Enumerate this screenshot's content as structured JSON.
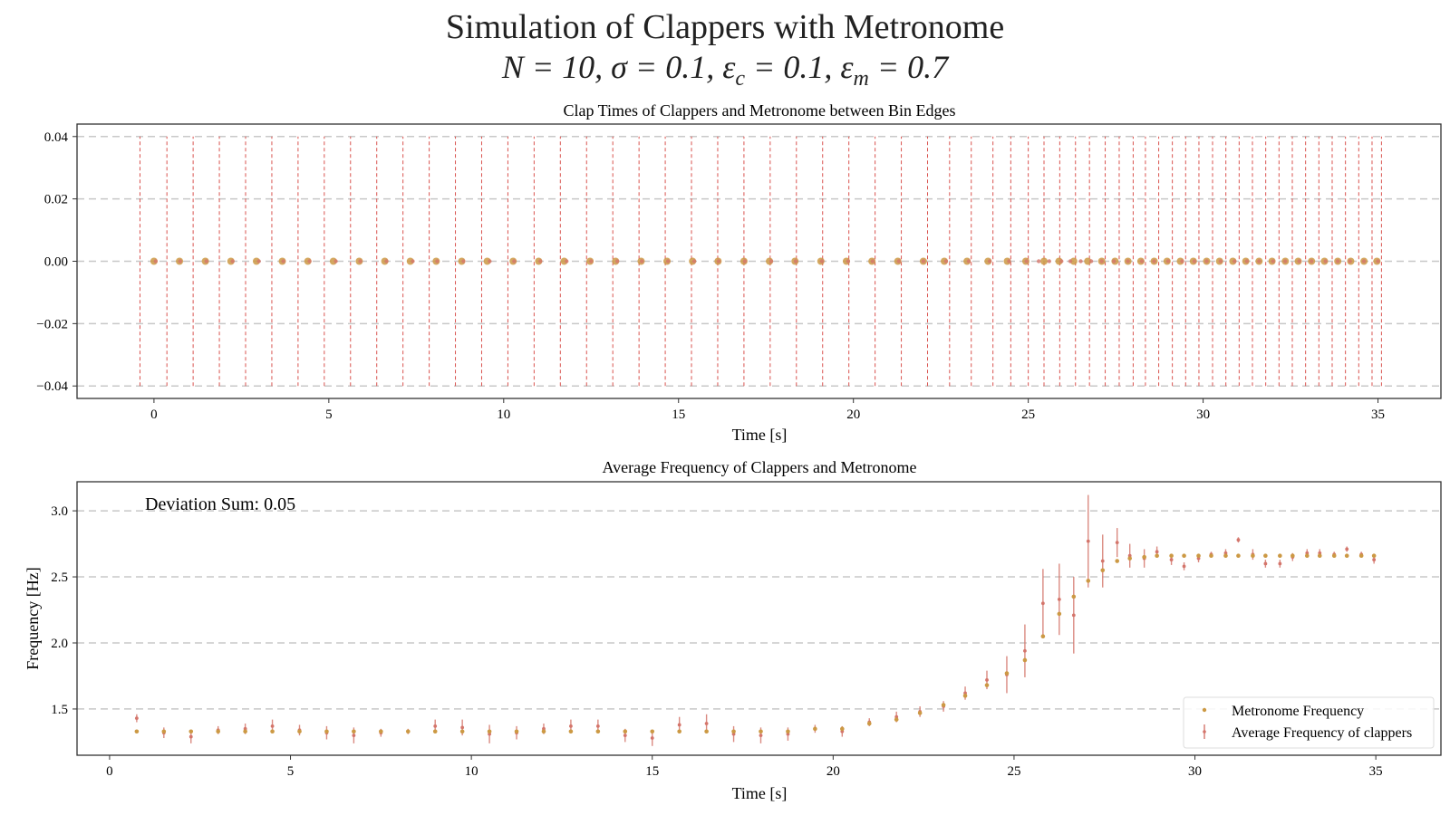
{
  "figure": {
    "title_line1": "Simulation of Clappers with Metronome",
    "params": {
      "N": "10",
      "sigma": "0.1",
      "eps_c": "0.1",
      "eps_m": "0.7"
    }
  },
  "colors": {
    "bin_edge": "#d9534f",
    "metronome": "#cc9944",
    "clapper": "#d4756b",
    "grid": "#c8c8c8",
    "axes": "#333333"
  },
  "chart_data": [
    {
      "type": "scatter",
      "title": "Clap Times of Clappers and Metronome between Bin Edges",
      "xlabel": "Time [s]",
      "ylabel": "",
      "xlim": [
        -2.2,
        36.8
      ],
      "ylim": [
        -0.044,
        0.044
      ],
      "xticks": [
        0,
        5,
        10,
        15,
        20,
        25,
        30,
        35
      ],
      "yticks": [
        0.04,
        0.02,
        0.0,
        -0.02,
        -0.04
      ],
      "ytick_labels": [
        "0.04",
        "0.02",
        "0.00",
        "−0.02",
        "−0.04"
      ],
      "grid": "y-dashed",
      "bin_edges_range": [
        -0.04,
        0.04
      ],
      "bin_edges": [
        -0.4,
        0.37,
        1.12,
        1.87,
        2.62,
        3.37,
        4.12,
        4.87,
        5.62,
        6.37,
        7.12,
        7.87,
        8.62,
        9.37,
        10.12,
        10.87,
        11.62,
        12.37,
        13.12,
        13.87,
        14.62,
        15.37,
        16.12,
        16.87,
        17.62,
        18.37,
        19.12,
        19.87,
        20.62,
        21.37,
        22.12,
        22.75,
        23.37,
        23.99,
        24.5,
        25.0,
        25.45,
        25.9,
        26.35,
        26.75,
        27.2,
        27.6,
        28.0,
        28.35,
        28.73,
        29.12,
        29.5,
        29.88,
        30.27,
        30.65,
        31.03,
        31.41,
        31.79,
        32.17,
        32.55,
        32.93,
        33.31,
        33.69,
        34.07,
        34.45,
        34.83,
        35.1
      ],
      "metronome_clap_times": [
        0.0,
        0.73,
        1.47,
        2.2,
        2.93,
        3.67,
        4.4,
        5.13,
        5.87,
        6.6,
        7.33,
        8.07,
        8.8,
        9.53,
        10.27,
        11.0,
        11.73,
        12.47,
        13.2,
        13.93,
        14.67,
        15.4,
        16.13,
        16.87,
        17.6,
        18.33,
        19.07,
        19.8,
        20.53,
        21.27,
        22.0,
        22.6,
        23.25,
        23.85,
        24.4,
        24.93,
        25.45,
        25.88,
        26.3,
        26.7,
        27.1,
        27.48,
        27.85,
        28.22,
        28.6,
        28.97,
        29.35,
        29.72,
        30.1,
        30.47,
        30.85,
        31.22,
        31.6,
        31.97,
        32.35,
        32.72,
        33.1,
        33.47,
        33.85,
        34.22,
        34.6,
        34.97
      ],
      "clapper_clap_times": [
        0.05,
        0.75,
        1.5,
        2.25,
        3.0,
        3.7,
        4.45,
        5.2,
        5.9,
        6.65,
        7.4,
        8.1,
        8.85,
        9.6,
        10.3,
        11.05,
        11.8,
        12.5,
        13.25,
        13.95,
        14.7,
        15.45,
        16.15,
        16.9,
        17.65,
        18.35,
        19.1,
        19.85,
        20.55,
        21.3,
        22.0,
        22.65,
        23.3,
        23.9,
        24.45,
        24.95,
        25.3,
        25.6,
        25.95,
        26.2,
        26.5,
        26.8,
        27.1,
        27.45,
        27.85,
        28.25,
        28.6,
        29.0,
        29.4,
        29.75,
        30.1,
        30.5,
        30.9,
        31.25,
        31.6,
        32.0,
        32.35,
        32.75,
        33.1,
        33.5,
        33.85,
        34.2,
        34.6,
        35.0
      ]
    },
    {
      "type": "scatter",
      "title": "Average Frequency of Clappers and Metronome",
      "xlabel": "Time [s]",
      "ylabel": "Frequency [Hz]",
      "xlim": [
        -0.9,
        36.8
      ],
      "ylim": [
        1.15,
        3.22
      ],
      "xticks": [
        0,
        5,
        10,
        15,
        20,
        25,
        30,
        35
      ],
      "yticks": [
        1.5,
        2.0,
        2.5,
        3.0
      ],
      "ytick_labels": [
        "1.5",
        "2.0",
        "2.5",
        "3.0"
      ],
      "grid": "y-dashed",
      "legend_position": "lower-right",
      "annotation": "Deviation Sum: 0.05",
      "series": [
        {
          "name": "Metronome Frequency",
          "kind": "points",
          "x": [
            0.75,
            1.5,
            2.25,
            3.0,
            3.75,
            4.5,
            5.25,
            6.0,
            6.75,
            7.5,
            8.25,
            9.0,
            9.75,
            10.5,
            11.25,
            12.0,
            12.75,
            13.5,
            14.25,
            15.0,
            15.75,
            16.5,
            17.25,
            18.0,
            18.75,
            19.5,
            20.25,
            21.0,
            21.75,
            22.4,
            23.05,
            23.65,
            24.25,
            24.8,
            25.3,
            25.8,
            26.25,
            26.65,
            27.05,
            27.45,
            27.85,
            28.2,
            28.6,
            28.95,
            29.35,
            29.7,
            30.1,
            30.45,
            30.85,
            31.2,
            31.6,
            31.95,
            32.35,
            32.7,
            33.1,
            33.45,
            33.85,
            34.2,
            34.6,
            34.95
          ],
          "y": [
            1.33,
            1.33,
            1.33,
            1.33,
            1.33,
            1.33,
            1.33,
            1.33,
            1.33,
            1.33,
            1.33,
            1.33,
            1.33,
            1.33,
            1.33,
            1.33,
            1.33,
            1.33,
            1.33,
            1.33,
            1.33,
            1.33,
            1.33,
            1.33,
            1.33,
            1.35,
            1.35,
            1.39,
            1.42,
            1.47,
            1.53,
            1.6,
            1.68,
            1.77,
            1.87,
            2.05,
            2.22,
            2.35,
            2.47,
            2.55,
            2.62,
            2.64,
            2.65,
            2.66,
            2.66,
            2.66,
            2.66,
            2.66,
            2.66,
            2.66,
            2.66,
            2.66,
            2.66,
            2.66,
            2.66,
            2.66,
            2.66,
            2.66,
            2.66,
            2.66
          ]
        },
        {
          "name": "Average Frequency of clappers",
          "kind": "errorbar",
          "x": [
            0.75,
            1.5,
            2.25,
            3.0,
            3.75,
            4.5,
            5.25,
            6.0,
            6.75,
            7.5,
            8.25,
            9.0,
            9.75,
            10.5,
            11.25,
            12.0,
            12.75,
            13.5,
            14.25,
            15.0,
            15.75,
            16.5,
            17.25,
            18.0,
            18.75,
            19.5,
            20.25,
            21.0,
            21.75,
            22.4,
            23.05,
            23.65,
            24.25,
            24.8,
            25.3,
            25.8,
            26.25,
            26.65,
            27.05,
            27.45,
            27.85,
            28.2,
            28.6,
            28.95,
            29.35,
            29.7,
            30.1,
            30.45,
            30.85,
            31.2,
            31.6,
            31.95,
            32.35,
            32.7,
            33.1,
            33.45,
            33.85,
            34.2,
            34.6,
            34.95
          ],
          "y": [
            1.43,
            1.32,
            1.29,
            1.34,
            1.35,
            1.37,
            1.34,
            1.32,
            1.3,
            1.32,
            1.33,
            1.37,
            1.36,
            1.31,
            1.32,
            1.35,
            1.37,
            1.37,
            1.3,
            1.28,
            1.38,
            1.39,
            1.31,
            1.3,
            1.31,
            1.35,
            1.33,
            1.4,
            1.44,
            1.48,
            1.52,
            1.62,
            1.72,
            1.76,
            1.94,
            2.3,
            2.33,
            2.21,
            2.77,
            2.62,
            2.76,
            2.66,
            2.64,
            2.69,
            2.63,
            2.58,
            2.64,
            2.67,
            2.68,
            2.78,
            2.67,
            2.6,
            2.6,
            2.65,
            2.68,
            2.68,
            2.67,
            2.71,
            2.67,
            2.63
          ],
          "err": [
            0.03,
            0.04,
            0.05,
            0.03,
            0.04,
            0.05,
            0.04,
            0.05,
            0.06,
            0.03,
            0.02,
            0.05,
            0.06,
            0.07,
            0.05,
            0.04,
            0.05,
            0.05,
            0.05,
            0.06,
            0.06,
            0.07,
            0.06,
            0.06,
            0.05,
            0.03,
            0.04,
            0.03,
            0.04,
            0.04,
            0.04,
            0.05,
            0.07,
            0.14,
            0.2,
            0.26,
            0.27,
            0.29,
            0.35,
            0.2,
            0.11,
            0.09,
            0.07,
            0.04,
            0.04,
            0.03,
            0.03,
            0.02,
            0.03,
            0.02,
            0.04,
            0.03,
            0.03,
            0.03,
            0.03,
            0.03,
            0.02,
            0.02,
            0.02,
            0.03
          ]
        }
      ]
    }
  ]
}
